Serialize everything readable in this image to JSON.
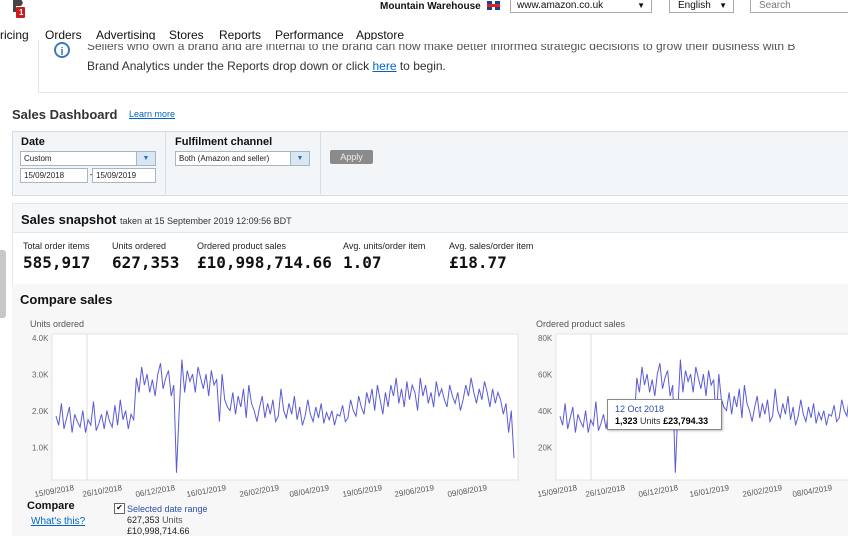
{
  "header": {
    "store_name": "Mountain Warehouse",
    "marketplace": "www.amazon.co.uk",
    "language": "English",
    "search_placeholder": "Search",
    "logo_badge": "1"
  },
  "nav": {
    "items": [
      "ricing",
      "Orders",
      "Advertising",
      "Stores",
      "Reports",
      "Performance",
      "Appstore"
    ]
  },
  "banner": {
    "line1": "Sellers who own a brand and are internal to the brand can now make better informed strategic decisions to grow their business with B",
    "line2_pre": "Brand Analytics under the Reports drop down or click ",
    "line2_link": "here",
    "line2_post": " to begin."
  },
  "page": {
    "title": "Sales Dashboard",
    "learn_more": "Learn more"
  },
  "filters": {
    "date_label": "Date",
    "date_preset": "Custom",
    "date_from": "15/09/2018",
    "date_sep": "–",
    "date_to": "15/09/2019",
    "channel_label": "Fulfilment channel",
    "channel_value": "Both (Amazon and seller)",
    "apply_label": "Apply"
  },
  "snapshot": {
    "title": "Sales snapshot",
    "subtitle": "taken at 15 September 2019 12:09:56 BDT",
    "metrics": [
      {
        "label": "Total order items",
        "value": "585,917"
      },
      {
        "label": "Units ordered",
        "value": "627,353"
      },
      {
        "label": "Ordered product sales",
        "value": "£10,998,714.66"
      },
      {
        "label": "Avg. units/order item",
        "value": "1.07"
      },
      {
        "label": "Avg. sales/order item",
        "value": "£18.77"
      }
    ]
  },
  "compare": {
    "title": "Compare sales",
    "compare_label": "Compare",
    "whats_this": "What's this?",
    "selected_range_label": "Selected date range",
    "selected_units_value": "627,353",
    "selected_units_unit": "Units",
    "selected_sales_value": "£10,998,714.66",
    "checked": true
  },
  "tooltip": {
    "date": "12 Oct 2018",
    "units": "1,323",
    "units_word": "Units",
    "sales": "£23,794.33"
  },
  "colors": {
    "line": "#5b5bd6",
    "link": "#0066c0",
    "apply": "#8b8b8b"
  },
  "chart_data": [
    {
      "type": "line",
      "title": "Units ordered",
      "y_ticks": [
        "4.0K",
        "3.0K",
        "2.0K",
        "1.0K"
      ],
      "x_ticks": [
        "15/09/2018",
        "26/10/2018",
        "06/12/2018",
        "16/01/2019",
        "26/02/2019",
        "08/04/2019",
        "19/05/2019",
        "29/06/2019",
        "09/08/2019"
      ],
      "ylim": [
        0,
        4000
      ],
      "series": [
        {
          "values": [
            1750,
            1500,
            2100,
            1400,
            1700,
            2000,
            1300,
            1800,
            1600,
            1450,
            1900,
            1300,
            1650,
            1500,
            2150,
            1350,
            1550,
            1800,
            1400,
            1900,
            1600,
            1450,
            2050,
            1500,
            2200,
            1650,
            1900,
            1400,
            1800,
            1650,
            2800,
            2400,
            3100,
            2600,
            2900,
            2400,
            2750,
            2300,
            2900,
            3200,
            2500,
            2800,
            3000,
            2300,
            2600,
            200,
            1900,
            3300,
            2400,
            3000,
            2700,
            2900,
            2400,
            3100,
            2800,
            2500,
            2900,
            2300,
            3000,
            2600,
            2750,
            1600,
            2900,
            2200,
            2000,
            1900,
            2400,
            1800,
            2300,
            2000,
            2500,
            1700,
            2600,
            2100,
            1900,
            1600,
            2000,
            2300,
            1700,
            2100,
            1800,
            2200,
            1600,
            1750,
            2500,
            1900,
            1700,
            2100,
            1800,
            2300,
            1650,
            2000,
            1500,
            1750,
            2200,
            1800,
            1600,
            2000,
            1700,
            2100,
            1550,
            1850,
            1650,
            1900,
            1500,
            1800,
            1750,
            2050,
            1600,
            1700,
            2200,
            1900,
            1750,
            2300,
            2000,
            1800,
            2400,
            2100,
            2500,
            1900,
            2600,
            2200,
            1800,
            2400,
            2000,
            2600,
            2300,
            2800,
            2100,
            2500,
            2000,
            2700,
            2200,
            2600,
            2400,
            1900,
            2800,
            2300,
            2600,
            2100,
            2400,
            2000,
            2700,
            2300,
            2500,
            2200,
            2000,
            2600,
            2300,
            2100,
            2400,
            1900,
            2200,
            2600,
            2300,
            2800,
            2400,
            2100,
            2500,
            2200,
            2700,
            2400,
            2000,
            2500,
            2100,
            2400,
            2200,
            1800,
            2100,
            1300,
            1900,
            600
          ],
          "x_start": "2018-09-15",
          "x_end": "2019-09-15"
        }
      ]
    },
    {
      "type": "line",
      "title": "Ordered product sales",
      "y_ticks": [
        "80K",
        "60K",
        "40K",
        "20K"
      ],
      "x_ticks": [
        "15/09/2018",
        "26/10/2018",
        "06/12/2018",
        "16/01/2019",
        "26/02/2019",
        "08/04/2019"
      ],
      "ylim": [
        0,
        80000
      ],
      "series": [
        {
          "values": [
            35000,
            30000,
            42000,
            28000,
            34000,
            40000,
            26000,
            36000,
            32000,
            29000,
            38000,
            26000,
            33000,
            30000,
            43000,
            27000,
            31000,
            36000,
            28000,
            38000,
            32000,
            29000,
            41000,
            30000,
            44000,
            33000,
            38000,
            28000,
            36000,
            33000,
            56000,
            48000,
            62000,
            52000,
            58000,
            48000,
            55000,
            46000,
            58000,
            64000,
            50000,
            56000,
            60000,
            46000,
            52000,
            4000,
            38000,
            66000,
            48000,
            60000,
            54000,
            58000,
            48000,
            62000,
            56000,
            50000,
            58000,
            46000,
            60000,
            52000,
            55000,
            32000,
            58000,
            44000,
            40000,
            38000,
            48000,
            36000,
            46000,
            40000,
            50000,
            34000,
            52000,
            42000,
            38000,
            32000,
            40000,
            46000,
            34000,
            42000,
            36000,
            44000,
            32000,
            35000,
            50000,
            38000,
            34000,
            42000,
            36000,
            46000,
            33000,
            40000,
            30000,
            35000,
            44000,
            36000,
            32000,
            40000,
            34000,
            42000,
            31000,
            37000,
            33000,
            38000,
            30000,
            36000,
            35000,
            41000,
            32000,
            34000,
            44000,
            38000,
            35000,
            46000,
            40000
          ],
          "x_start": "2018-09-15",
          "x_end": "2019-05-01"
        }
      ]
    }
  ]
}
